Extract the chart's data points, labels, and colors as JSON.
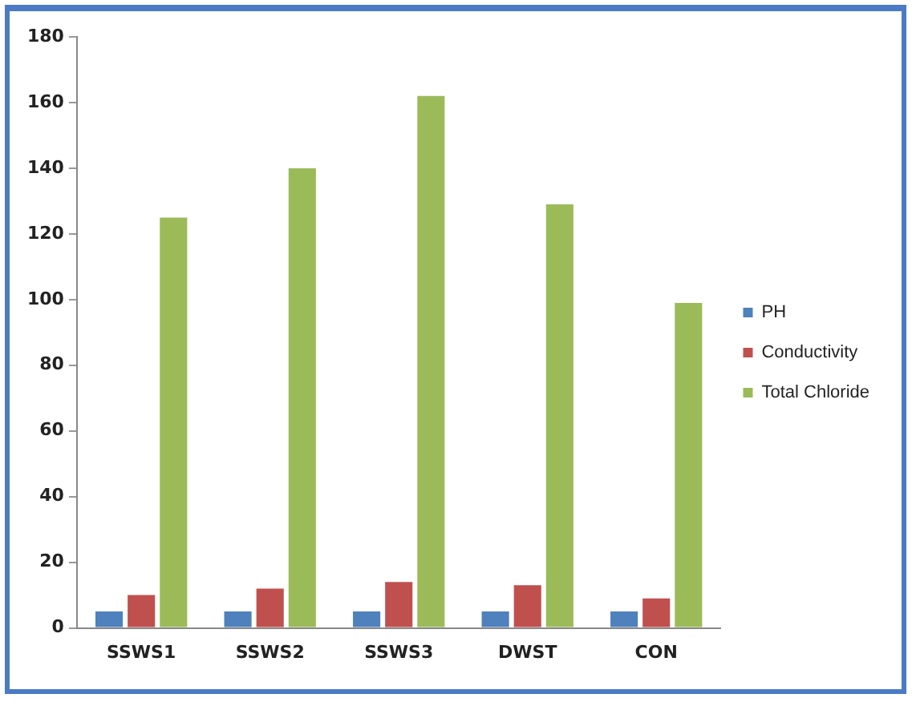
{
  "chart_data": {
    "type": "bar",
    "categories": [
      "SSWS1",
      "SSWS2",
      "SSWS3",
      "DWST",
      "CON"
    ],
    "series": [
      {
        "name": "PH",
        "color": "#4f81bd",
        "values": [
          5,
          5,
          5,
          5,
          5
        ]
      },
      {
        "name": "Conductivity",
        "color": "#c0504d",
        "values": [
          10,
          12,
          14,
          13,
          9
        ]
      },
      {
        "name": "Total Chloride",
        "color": "#9bbb59",
        "values": [
          125,
          140,
          162,
          129,
          99
        ]
      }
    ],
    "ylim": [
      0,
      180
    ],
    "yticks": [
      0,
      20,
      40,
      60,
      80,
      100,
      120,
      140,
      160,
      180
    ],
    "grid": false,
    "legend": "right"
  }
}
